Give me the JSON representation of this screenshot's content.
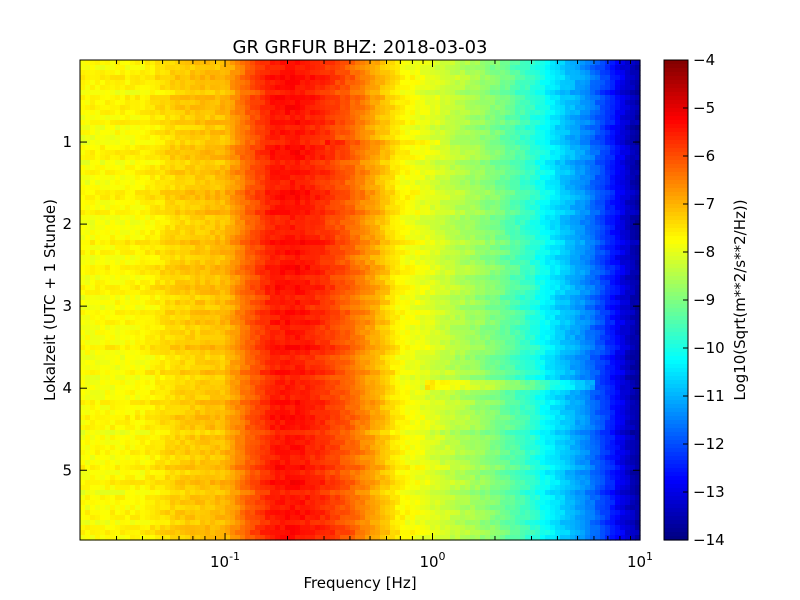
{
  "chart_data": {
    "type": "heatmap",
    "title": "GR GRFUR BHZ: 2018-03-03",
    "xlabel": "Frequency [Hz]",
    "ylabel": "Lokalzeit (UTC + 1 Stunde)",
    "x_scale": "log",
    "xlim": [
      0.02,
      10
    ],
    "ylim": [
      5.85,
      0
    ],
    "x_ticks": [
      {
        "value": 0.1,
        "base": "10",
        "exp": "-1"
      },
      {
        "value": 1,
        "base": "10",
        "exp": "0"
      },
      {
        "value": 10,
        "base": "10",
        "exp": "1"
      }
    ],
    "y_ticks": [
      {
        "value": 1,
        "label": "1"
      },
      {
        "value": 2,
        "label": "2"
      },
      {
        "value": 3,
        "label": "3"
      },
      {
        "value": 4,
        "label": "4"
      },
      {
        "value": 5,
        "label": "5"
      }
    ],
    "colorbar": {
      "label": "Log10(Sqrt(m**2/s**2/Hz))",
      "range": [
        -14,
        -4
      ],
      "colormap": "jet",
      "ticks": [
        {
          "value": -4,
          "label": "−4"
        },
        {
          "value": -5,
          "label": "−5"
        },
        {
          "value": -6,
          "label": "−6"
        },
        {
          "value": -7,
          "label": "−7"
        },
        {
          "value": -8,
          "label": "−8"
        },
        {
          "value": -9,
          "label": "−9"
        },
        {
          "value": -10,
          "label": "−10"
        },
        {
          "value": -11,
          "label": "−11"
        },
        {
          "value": -12,
          "label": "−12"
        },
        {
          "value": -13,
          "label": "−13"
        },
        {
          "value": -14,
          "label": "−14"
        }
      ]
    },
    "spectrum_profile": {
      "frequency_hz": [
        0.02,
        0.04,
        0.06,
        0.1,
        0.13,
        0.17,
        0.22,
        0.3,
        0.4,
        0.55,
        0.7,
        1.0,
        1.5,
        2.0,
        3.0,
        4.0,
        5.5,
        7.0,
        8.0,
        9.0,
        10.0
      ],
      "log10_psd": [
        -7.8,
        -7.7,
        -7.3,
        -7.1,
        -6.2,
        -5.5,
        -5.4,
        -5.7,
        -6.2,
        -7.0,
        -7.7,
        -8.1,
        -8.6,
        -9.0,
        -9.8,
        -10.6,
        -11.4,
        -12.3,
        -12.9,
        -13.4,
        -13.7
      ]
    },
    "time_variation": [
      {
        "time_h": 1.0,
        "freq_range_hz": [
          0.3,
          1.1
        ],
        "delta_log10": 0.4
      },
      {
        "time_h": 3.95,
        "freq_range_hz": [
          0.9,
          6.0
        ],
        "delta_log10": 0.6
      }
    ]
  }
}
